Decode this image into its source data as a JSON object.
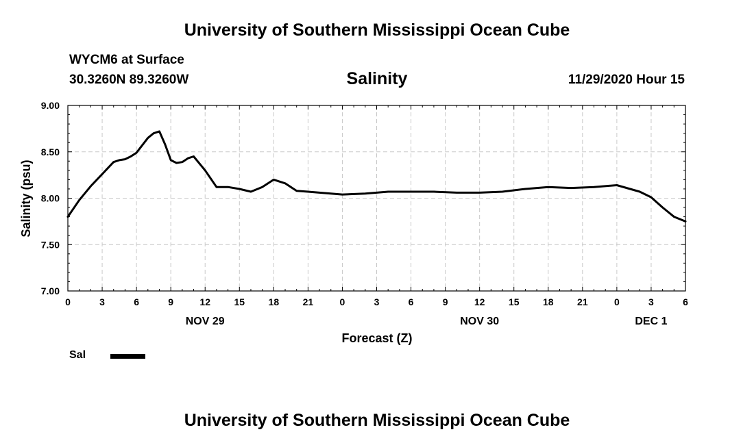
{
  "header": {
    "title": "University of Southern Mississippi Ocean Cube",
    "station": "WYCM6 at Surface",
    "coordinates": "30.3260N 89.3260W",
    "datetime": "11/29/2020 Hour 15"
  },
  "footer": {
    "title": "University of Southern Mississippi Ocean Cube"
  },
  "legend": {
    "label": "Sal",
    "color": "#000000"
  },
  "chart_data": {
    "type": "line",
    "title": "Salinity",
    "xlabel": "Forecast (Z)",
    "ylabel": "Salinity (psu)",
    "ylim": [
      7.0,
      9.0
    ],
    "xlim_hours": [
      0,
      54
    ],
    "yticks": [
      "7.00",
      "7.50",
      "8.00",
      "8.50",
      "9.00"
    ],
    "xticks": [
      "0",
      "3",
      "6",
      "9",
      "12",
      "15",
      "18",
      "21",
      "0",
      "3",
      "6",
      "9",
      "12",
      "15",
      "18",
      "21",
      "0",
      "3",
      "6"
    ],
    "date_labels": [
      {
        "label": "NOV 29",
        "hour": 12
      },
      {
        "label": "NOV 30",
        "hour": 36
      },
      {
        "label": "DEC 1",
        "hour": 51
      }
    ],
    "grid": true,
    "legend_position": "bottom-left",
    "series": [
      {
        "name": "Sal",
        "color": "#000000",
        "x_hours": [
          0,
          1,
          2,
          3,
          4,
          4.5,
          5,
          5.5,
          6,
          7,
          7.5,
          8,
          8.5,
          9,
          9.5,
          10,
          10.5,
          11,
          12,
          13,
          14,
          15,
          16,
          17,
          18,
          19,
          20,
          21,
          22,
          24,
          26,
          28,
          30,
          32,
          34,
          36,
          38,
          40,
          42,
          44,
          46,
          48,
          50,
          51,
          52,
          53,
          54
        ],
        "values": [
          7.8,
          7.98,
          8.13,
          8.26,
          8.39,
          8.41,
          8.42,
          8.45,
          8.49,
          8.65,
          8.7,
          8.72,
          8.58,
          8.41,
          8.38,
          8.39,
          8.43,
          8.45,
          8.3,
          8.12,
          8.12,
          8.1,
          8.07,
          8.12,
          8.2,
          8.16,
          8.08,
          8.07,
          8.06,
          8.04,
          8.05,
          8.07,
          8.07,
          8.07,
          8.06,
          8.06,
          8.07,
          8.1,
          8.12,
          8.11,
          8.12,
          8.14,
          8.07,
          8.01,
          7.9,
          7.8,
          7.75
        ]
      }
    ]
  }
}
